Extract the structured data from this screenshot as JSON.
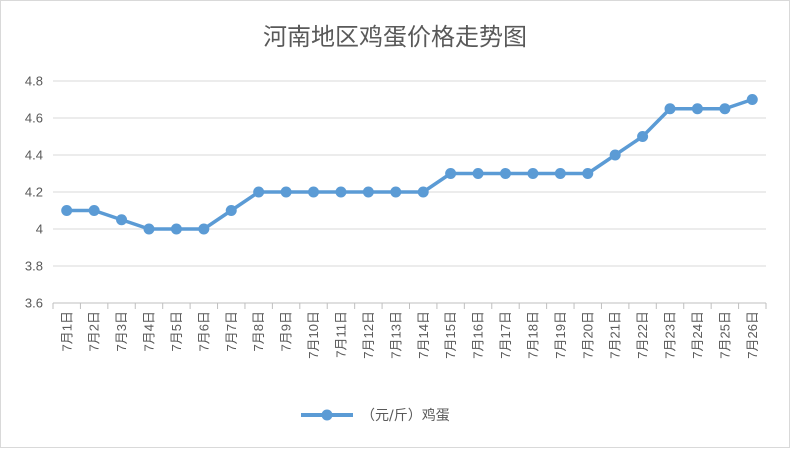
{
  "chart_data": {
    "type": "line",
    "title": "河南地区鸡蛋价格走势图",
    "categories": [
      "7月1日",
      "7月2日",
      "7月3日",
      "7月4日",
      "7月5日",
      "7月6日",
      "7月7日",
      "7月8日",
      "7月9日",
      "7月10日",
      "7月11日",
      "7月12日",
      "7月13日",
      "7月14日",
      "7月15日",
      "7月16日",
      "7月17日",
      "7月18日",
      "7月19日",
      "7月20日",
      "7月21日",
      "7月22日",
      "7月23日",
      "7月24日",
      "7月25日",
      "7月26日"
    ],
    "series": [
      {
        "name": "（元/斤）鸡蛋",
        "color": "#5b9bd5",
        "values": [
          4.1,
          4.1,
          4.05,
          4.0,
          4.0,
          4.0,
          4.1,
          4.2,
          4.2,
          4.2,
          4.2,
          4.2,
          4.2,
          4.2,
          4.3,
          4.3,
          4.3,
          4.3,
          4.3,
          4.3,
          4.4,
          4.5,
          4.65,
          4.65,
          4.65,
          4.7
        ]
      }
    ],
    "ylim": [
      3.6,
      4.8
    ],
    "yticks": [
      3.6,
      3.8,
      4,
      4.2,
      4.4,
      4.6,
      4.8
    ],
    "xlabel": "",
    "ylabel": "",
    "grid": true,
    "legend_position": "bottom"
  }
}
